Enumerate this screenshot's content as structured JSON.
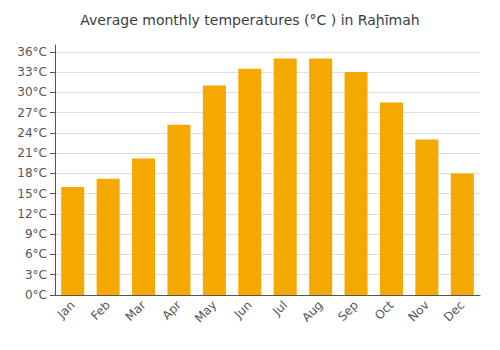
{
  "chart_data": {
    "type": "bar",
    "title": "Average monthly temperatures (°C ) in Raḩīmah",
    "categories": [
      "Jan",
      "Feb",
      "Mar",
      "Apr",
      "May",
      "Jun",
      "Jul",
      "Aug",
      "Sep",
      "Oct",
      "Nov",
      "Dec"
    ],
    "values": [
      16.0,
      17.2,
      20.2,
      25.2,
      31.0,
      33.5,
      35.0,
      35.0,
      33.0,
      28.5,
      23.0,
      18.0
    ],
    "color": "#F5A800",
    "ylim": [
      0,
      37
    ],
    "yticks": [
      {
        "value": 0,
        "label": "0°C"
      },
      {
        "value": 3,
        "label": "3°C"
      },
      {
        "value": 6,
        "label": "6°C"
      },
      {
        "value": 9,
        "label": "9°C"
      },
      {
        "value": 12,
        "label": "12°C"
      },
      {
        "value": 15,
        "label": "15°C"
      },
      {
        "value": 18,
        "label": "18°C"
      },
      {
        "value": 21,
        "label": "21°C"
      },
      {
        "value": 24,
        "label": "24°C"
      },
      {
        "value": 27,
        "label": "27°C"
      },
      {
        "value": 30,
        "label": "30°C"
      },
      {
        "value": 33,
        "label": "33°C"
      },
      {
        "value": 36,
        "label": "36°C"
      }
    ],
    "grid": true
  }
}
